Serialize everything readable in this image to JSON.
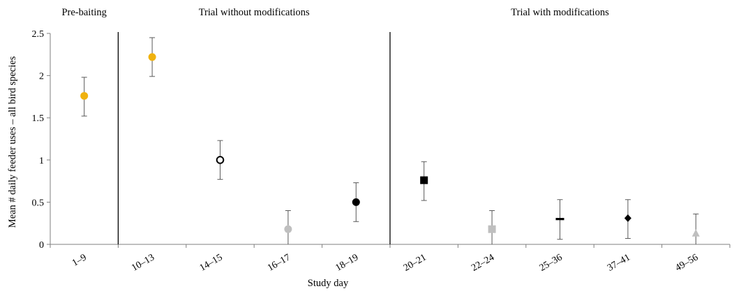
{
  "chart_data": {
    "type": "scatter",
    "xlabel": "Study day",
    "ylabel": "Mean # daily feeder uses – all bird species",
    "ylim": [
      0,
      2.5
    ],
    "yticks": [
      "0",
      "0.5",
      "1",
      "1.5",
      "2",
      "2.5"
    ],
    "grid": false,
    "sections": [
      {
        "label": "Pre-baiting",
        "categories": [
          "1–9"
        ]
      },
      {
        "label": "Trial without modifications",
        "categories": [
          "10–13",
          "14–15",
          "16–17",
          "18–19"
        ]
      },
      {
        "label": "Trial with modifications",
        "categories": [
          "20–21",
          "22–24",
          "25–36",
          "37–41",
          "49–56"
        ]
      }
    ],
    "categories": [
      "1–9",
      "10–13",
      "14–15",
      "16–17",
      "18–19",
      "20–21",
      "22–24",
      "25–36",
      "37–41",
      "49–56"
    ],
    "points": [
      {
        "x": "1–9",
        "y": 1.76,
        "err_low": 1.52,
        "err_high": 1.98,
        "marker": "circle",
        "color": "#f0b20e"
      },
      {
        "x": "10–13",
        "y": 2.22,
        "err_low": 1.99,
        "err_high": 2.45,
        "marker": "circle",
        "color": "#f0b20e"
      },
      {
        "x": "14–15",
        "y": 1.0,
        "err_low": 0.77,
        "err_high": 1.23,
        "marker": "open-circle",
        "color": "#000000"
      },
      {
        "x": "16–17",
        "y": 0.18,
        "err_low": 0.0,
        "err_high": 0.4,
        "marker": "circle",
        "color": "#bfbfbf"
      },
      {
        "x": "18–19",
        "y": 0.5,
        "err_low": 0.27,
        "err_high": 0.73,
        "marker": "circle",
        "color": "#000000"
      },
      {
        "x": "20–21",
        "y": 0.76,
        "err_low": 0.52,
        "err_high": 0.98,
        "marker": "square",
        "color": "#000000"
      },
      {
        "x": "22–24",
        "y": 0.18,
        "err_low": 0.0,
        "err_high": 0.4,
        "marker": "square",
        "color": "#bfbfbf"
      },
      {
        "x": "25–36",
        "y": 0.3,
        "err_low": 0.06,
        "err_high": 0.53,
        "marker": "dash",
        "color": "#000000"
      },
      {
        "x": "37–41",
        "y": 0.31,
        "err_low": 0.07,
        "err_high": 0.53,
        "marker": "diamond",
        "color": "#000000"
      },
      {
        "x": "49–56",
        "y": 0.13,
        "err_low": 0.0,
        "err_high": 0.36,
        "marker": "triangle",
        "color": "#bfbfbf"
      }
    ]
  }
}
